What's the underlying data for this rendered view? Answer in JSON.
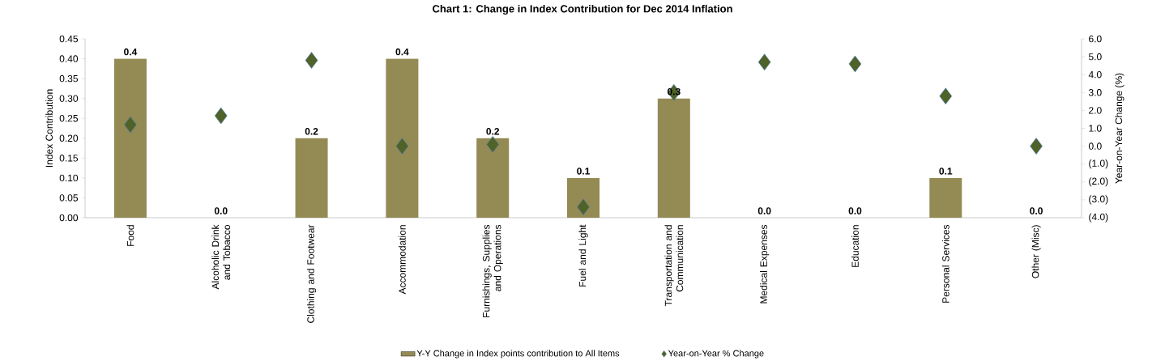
{
  "chart_data": {
    "type": "bar",
    "title": "Chart 1: Change in Index Contribution for Dec 2014 Inflation",
    "ylabel": "Index Contribution",
    "y2label": "Year-on-Year Change (%)",
    "categories": [
      "Food",
      "Alcoholic Drink and Tobacco",
      "Clothing and Footwear",
      "Accommodation",
      "Furnishings, Supplies and Operations",
      "Fuel and Light",
      "Transportation and Communication",
      "Medical Expenses",
      "Education",
      "Personal Services",
      "Other (Misc)"
    ],
    "series": [
      {
        "name": "Y-Y Change in Index points contribution to All Items",
        "color": "#948a54",
        "values": [
          0.4,
          0.0,
          0.2,
          0.4,
          0.2,
          0.1,
          0.3,
          0.0,
          0.0,
          0.1,
          0.0
        ],
        "value_labels": [
          "0.4",
          "0.0",
          "0.2",
          "0.4",
          "0.2",
          "0.1",
          "0.3",
          "0.0",
          "0.0",
          "0.1",
          "0.0"
        ]
      },
      {
        "name": "Year-on-Year % Change",
        "type": "scatter",
        "axis": "y2",
        "marker": "diamond",
        "color": "#4f6228",
        "values": [
          1.2,
          1.7,
          4.8,
          0.0,
          0.1,
          -3.4,
          3.0,
          4.7,
          4.6,
          2.8,
          0.0
        ]
      }
    ],
    "ylim": [
      0,
      0.45
    ],
    "yticks": [
      {
        "value": 0,
        "label": "0.00"
      },
      {
        "value": 0.05,
        "label": "0.05"
      },
      {
        "value": 0.1,
        "label": "0.10"
      },
      {
        "value": 0.15,
        "label": "0.15"
      },
      {
        "value": 0.2,
        "label": "0.20"
      },
      {
        "value": 0.25,
        "label": "0.25"
      },
      {
        "value": 0.3,
        "label": "0.30"
      },
      {
        "value": 0.35,
        "label": "0.35"
      },
      {
        "value": 0.4,
        "label": "0.40"
      },
      {
        "value": 0.45,
        "label": "0.45"
      }
    ],
    "y2lim": [
      -4,
      6
    ],
    "y2ticks": [
      {
        "value": -4,
        "label": "(4.0)"
      },
      {
        "value": -3,
        "label": "(3.0)"
      },
      {
        "value": -2,
        "label": "(2.0)"
      },
      {
        "value": -1,
        "label": "(1.0)"
      },
      {
        "value": 0,
        "label": "0.0"
      },
      {
        "value": 1,
        "label": "1.0"
      },
      {
        "value": 2,
        "label": "2.0"
      },
      {
        "value": 3,
        "label": "3.0"
      },
      {
        "value": 4,
        "label": "4.0"
      },
      {
        "value": 5,
        "label": "5.0"
      },
      {
        "value": 6,
        "label": "6.0"
      }
    ],
    "legend": "bottom"
  }
}
